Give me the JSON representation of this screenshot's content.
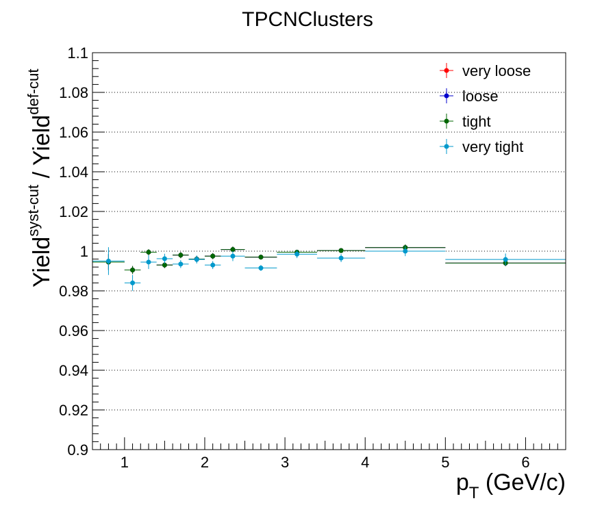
{
  "chart_data": {
    "type": "scatter",
    "title": "TPCNClusters",
    "xlabel": {
      "main": "p",
      "sub": "T",
      "rest": " (GeV/c)"
    },
    "ylabel": {
      "a": "Yield",
      "a_sup": "syst-cut",
      "b": " / Yield",
      "b_sup": "def-cut"
    },
    "xlim": [
      0.6,
      6.5
    ],
    "ylim": [
      0.9,
      1.1
    ],
    "x_ticks": [
      1,
      2,
      3,
      4,
      5,
      6
    ],
    "x_tick_labels": [
      "1",
      "2",
      "3",
      "4",
      "5",
      "6"
    ],
    "y_ticks": [
      0.9,
      0.92,
      0.94,
      0.96,
      0.98,
      1.0,
      1.02,
      1.04,
      1.06,
      1.08,
      1.1
    ],
    "y_tick_labels": [
      "0.9",
      "0.92",
      "0.94",
      "0.96",
      "0.98",
      "1",
      "1.02",
      "1.04",
      "1.06",
      "1.08",
      "1.1"
    ],
    "grid_y": true,
    "legend_position": "top-right",
    "bins": [
      {
        "x": 0.8,
        "xerr": 0.2
      },
      {
        "x": 1.1,
        "xerr": 0.1
      },
      {
        "x": 1.3,
        "xerr": 0.1
      },
      {
        "x": 1.5,
        "xerr": 0.1
      },
      {
        "x": 1.7,
        "xerr": 0.1
      },
      {
        "x": 1.9,
        "xerr": 0.1
      },
      {
        "x": 2.1,
        "xerr": 0.1
      },
      {
        "x": 2.35,
        "xerr": 0.15
      },
      {
        "x": 2.7,
        "xerr": 0.2
      },
      {
        "x": 3.15,
        "xerr": 0.25
      },
      {
        "x": 3.7,
        "xerr": 0.3
      },
      {
        "x": 4.5,
        "xerr": 0.5
      },
      {
        "x": 5.75,
        "xerr": 0.75
      }
    ],
    "series": [
      {
        "name": "very loose",
        "color": "#ff0000",
        "values": [
          0.9945,
          0.9905,
          0.9995,
          0.993,
          0.998,
          0.996,
          0.9975,
          1.0008,
          0.997,
          0.9995,
          1.0003,
          1.0018,
          0.994
        ],
        "yerr": [
          0.004,
          0.002,
          0.0015,
          0.0015,
          0.0015,
          0.0015,
          0.0015,
          0.0015,
          0.0012,
          0.0012,
          0.0012,
          0.0015,
          0.0015
        ]
      },
      {
        "name": "loose",
        "color": "#0000cc",
        "values": [
          0.9945,
          0.9905,
          0.9995,
          0.993,
          0.998,
          0.996,
          0.9975,
          1.0008,
          0.997,
          0.9995,
          1.0003,
          1.0018,
          0.994
        ],
        "yerr": [
          0.004,
          0.002,
          0.0015,
          0.0015,
          0.0015,
          0.0015,
          0.0015,
          0.0015,
          0.0012,
          0.0012,
          0.0012,
          0.0015,
          0.0015
        ]
      },
      {
        "name": "tight",
        "color": "#006600",
        "values": [
          0.9945,
          0.9905,
          0.9995,
          0.993,
          0.998,
          0.996,
          0.9975,
          1.0008,
          0.997,
          0.9995,
          1.0003,
          1.0018,
          0.994
        ],
        "yerr": [
          0.004,
          0.002,
          0.0015,
          0.0015,
          0.0015,
          0.0015,
          0.0015,
          0.0015,
          0.0012,
          0.0012,
          0.0012,
          0.0015,
          0.0015
        ]
      },
      {
        "name": "very tight",
        "color": "#0099cc",
        "values": [
          0.995,
          0.984,
          0.9945,
          0.9962,
          0.9935,
          0.9958,
          0.993,
          0.9975,
          0.9915,
          0.9985,
          0.9965,
          1.0,
          0.9958
        ],
        "yerr": [
          0.007,
          0.004,
          0.0035,
          0.0025,
          0.002,
          0.002,
          0.002,
          0.0025,
          0.0015,
          0.002,
          0.002,
          0.0025,
          0.003
        ]
      }
    ]
  }
}
